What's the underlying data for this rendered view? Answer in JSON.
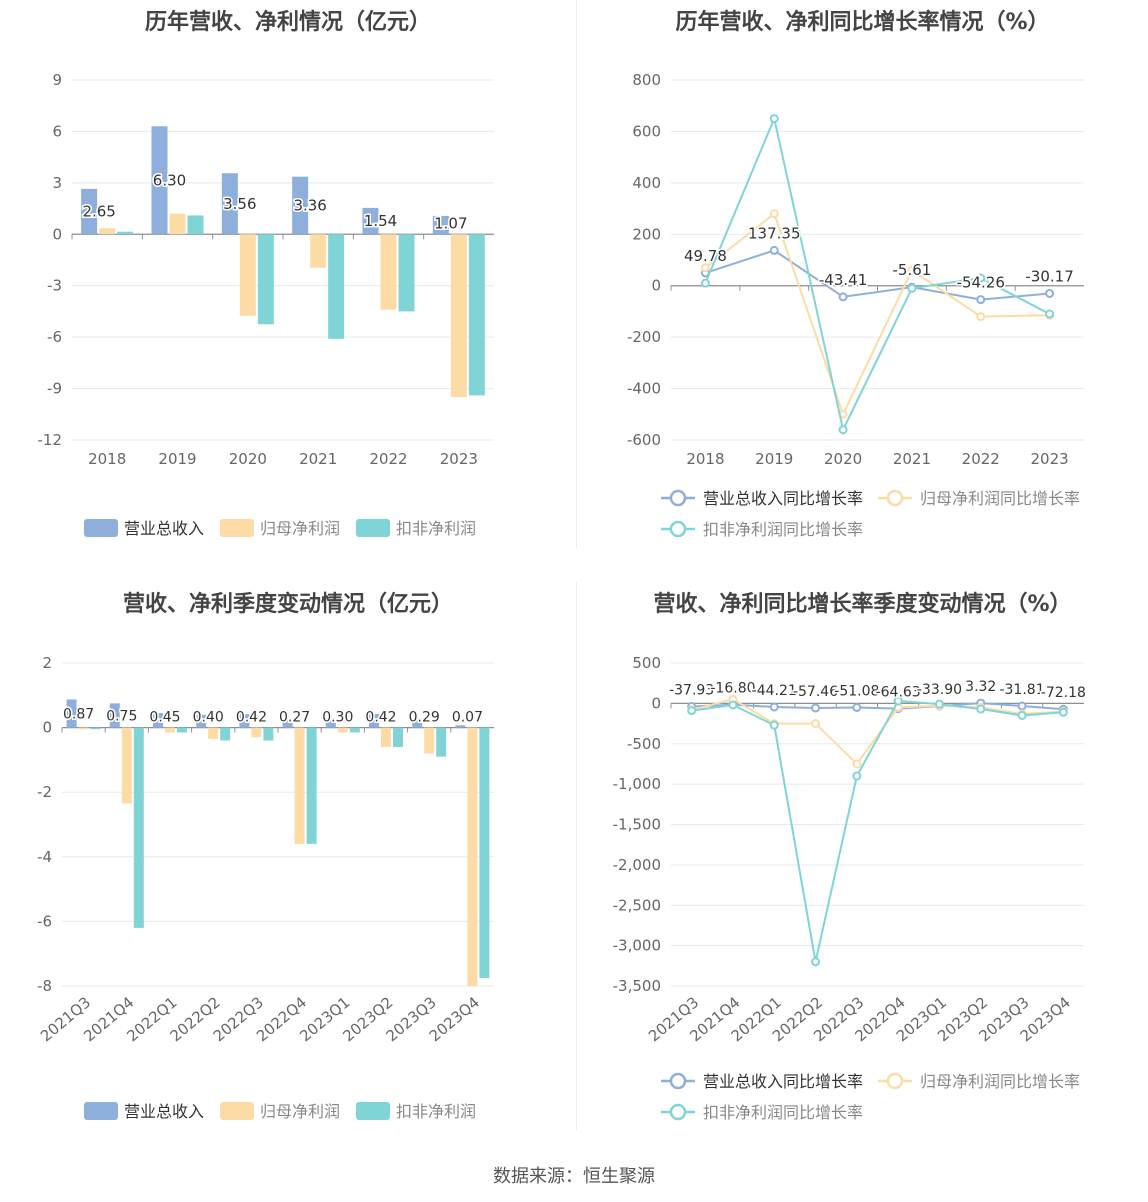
{
  "colors": {
    "revenue": "#8eaedb",
    "parent_profit": "#fddba4",
    "nonrecurring_profit": "#80d4d6",
    "revenue_line": "#8eaedb",
    "parent_line": "#fddba4",
    "nonrecurring_line": "#80d4d6",
    "axis_text": "#666666",
    "label_text": "#333333"
  },
  "source_text": "数据来源：恒生聚源",
  "chart_data": [
    {
      "id": "annual-amount",
      "type": "bar",
      "title": "历年营收、净利情况（亿元）",
      "categories": [
        "2018",
        "2019",
        "2020",
        "2021",
        "2022",
        "2023"
      ],
      "yticks": [
        "9",
        "6",
        "3",
        "0",
        "-3",
        "-6",
        "-9",
        "-12"
      ],
      "ylim": [
        -12,
        9
      ],
      "series": [
        {
          "name": "营业总收入",
          "values": [
            2.65,
            6.3,
            3.56,
            3.36,
            1.54,
            1.07
          ],
          "labels": [
            "2.65",
            "6.30",
            "3.56",
            "3.36",
            "1.54",
            "1.07"
          ]
        },
        {
          "name": "归母净利润",
          "values": [
            0.35,
            1.2,
            -4.75,
            -1.95,
            -4.4,
            -9.5
          ]
        },
        {
          "name": "扣非净利润",
          "values": [
            0.15,
            1.1,
            -5.25,
            -6.1,
            -4.5,
            -9.4
          ]
        }
      ]
    },
    {
      "id": "annual-growth",
      "type": "line",
      "title": "历年营收、净利同比增长率情况（%）",
      "categories": [
        "2018",
        "2019",
        "2020",
        "2021",
        "2022",
        "2023"
      ],
      "yticks": [
        "800",
        "600",
        "400",
        "200",
        "0",
        "-200",
        "-400",
        "-600"
      ],
      "ylim": [
        -600,
        800
      ],
      "series": [
        {
          "name": "营业总收入同比增长率",
          "values": [
            49.78,
            137.35,
            -43.41,
            -5.61,
            -54.26,
            -30.17
          ],
          "labels": [
            "49.78",
            "137.35",
            "-43.41",
            "-5.61",
            "-54.26",
            "-30.17"
          ]
        },
        {
          "name": "归母净利润同比增长率",
          "values": [
            70,
            280,
            -500,
            60,
            -120,
            -115
          ]
        },
        {
          "name": "扣非净利润同比增长率",
          "values": [
            10,
            650,
            -560,
            -10,
            30,
            -110
          ]
        }
      ]
    },
    {
      "id": "quarterly-amount",
      "type": "bar",
      "title": "营收、净利季度变动情况（亿元）",
      "categories": [
        "2021Q3",
        "2021Q4",
        "2022Q1",
        "2022Q2",
        "2022Q3",
        "2022Q4",
        "2023Q1",
        "2023Q2",
        "2023Q3",
        "2023Q4"
      ],
      "yticks": [
        "2",
        "0",
        "-2",
        "-4",
        "-6",
        "-8"
      ],
      "ylim": [
        -8,
        2
      ],
      "series": [
        {
          "name": "营业总收入",
          "values": [
            0.87,
            0.75,
            0.45,
            0.4,
            0.42,
            0.27,
            0.3,
            0.42,
            0.29,
            0.07
          ],
          "labels": [
            "0.87",
            "0.75",
            "0.45",
            "0.40",
            "0.42",
            "0.27",
            "0.30",
            "0.42",
            "0.29",
            "0.07"
          ]
        },
        {
          "name": "归母净利润",
          "values": [
            -0.05,
            -2.35,
            -0.15,
            -0.35,
            -0.3,
            -3.6,
            -0.15,
            -0.6,
            -0.8,
            -8.0
          ]
        },
        {
          "name": "扣非净利润",
          "values": [
            -0.05,
            -6.2,
            -0.15,
            -0.4,
            -0.4,
            -3.6,
            -0.15,
            -0.6,
            -0.9,
            -7.75
          ]
        }
      ]
    },
    {
      "id": "quarterly-growth",
      "type": "line",
      "title": "营收、净利同比增长率季度变动情况（%）",
      "categories": [
        "2021Q3",
        "2021Q4",
        "2022Q1",
        "2022Q2",
        "2022Q3",
        "2022Q4",
        "2023Q1",
        "2023Q2",
        "2023Q3",
        "2023Q4"
      ],
      "yticks": [
        "500",
        "0",
        "-500",
        "-1,000",
        "-1,500",
        "-2,000",
        "-2,500",
        "-3,000",
        "-3,500"
      ],
      "ylim": [
        -3500,
        500
      ],
      "series": [
        {
          "name": "营业总收入同比增长率",
          "values": [
            -37.93,
            -16.8,
            -44.21,
            -57.46,
            -51.08,
            -64.63,
            -33.9,
            3.32,
            -31.81,
            -72.18
          ],
          "labels": [
            "-37.93",
            "-16.80",
            "-44.21",
            "-57.46",
            "-51.08",
            "-64.63",
            "-33.90",
            "3.32",
            "-31.81",
            "-72.18"
          ]
        },
        {
          "name": "归母净利润同比增长率",
          "values": [
            -80,
            50,
            -250,
            -250,
            -750,
            -50,
            -30,
            -50,
            -130,
            -100
          ]
        },
        {
          "name": "扣非净利润同比增长率",
          "values": [
            -90,
            -20,
            -270,
            -3200,
            -900,
            30,
            -10,
            -70,
            -150,
            -110
          ]
        }
      ]
    }
  ]
}
